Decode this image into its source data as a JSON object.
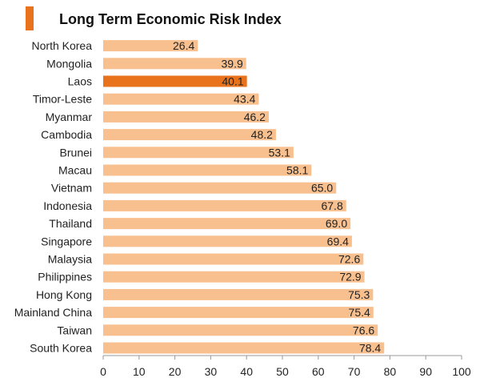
{
  "chart_data": {
    "type": "bar",
    "orientation": "horizontal",
    "title": "Long Term Economic Risk Index",
    "xlabel": "",
    "ylabel": "",
    "xlim": [
      0,
      100
    ],
    "ticks": [
      0,
      10,
      20,
      30,
      40,
      50,
      60,
      70,
      80,
      90,
      100
    ],
    "grid": false,
    "categories": [
      "North Korea",
      "Mongolia",
      "Laos",
      "Timor-Leste",
      "Myanmar",
      "Cambodia",
      "Brunei",
      "Macau",
      "Vietnam",
      "Indonesia",
      "Thailand",
      "Singapore",
      "Malaysia",
      "Philippines",
      "Hong Kong",
      "Mainland China",
      "Taiwan",
      "South Korea"
    ],
    "values": [
      26.4,
      39.9,
      40.1,
      43.4,
      46.2,
      48.2,
      53.1,
      58.1,
      65.0,
      67.8,
      69.0,
      69.4,
      72.6,
      72.9,
      75.3,
      75.4,
      76.6,
      78.4
    ],
    "value_labels": [
      "26.4",
      "39.9",
      "40.1",
      "43.4",
      "46.2",
      "48.2",
      "53.1",
      "58.1",
      "65.0",
      "67.8",
      "69.0",
      "69.4",
      "72.6",
      "72.9",
      "75.3",
      "75.4",
      "76.6",
      "78.4"
    ],
    "highlight": "Laos",
    "colors": {
      "bar": "#F9C08F",
      "highlight": "#E8731C",
      "title_marker": "#E8731C",
      "axis": "#999999"
    }
  }
}
